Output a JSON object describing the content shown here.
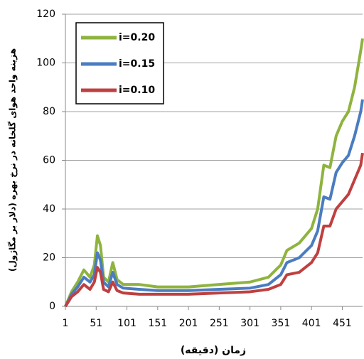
{
  "chart_data": {
    "type": "line",
    "x_label": "زمان (دقیقه)",
    "y_label": "هزینه واحد هوای گلخانه در نرخ بهره (دلار بر مگاژول)",
    "x": [
      1,
      11,
      21,
      31,
      41,
      48,
      53,
      58,
      63,
      71,
      78,
      85,
      95,
      121,
      151,
      201,
      251,
      301,
      331,
      351,
      361,
      381,
      401,
      411,
      421,
      431,
      441,
      451,
      461,
      471,
      481,
      484
    ],
    "series": [
      {
        "name": "i=0.20",
        "color": "#8fb33f",
        "values": [
          0,
          6,
          10,
          15,
          12,
          17,
          29,
          25,
          12,
          10,
          18,
          11,
          9,
          9,
          8,
          8,
          9,
          10,
          12,
          17,
          23,
          26,
          32,
          40,
          58,
          57,
          70,
          76,
          80,
          90,
          105,
          110
        ]
      },
      {
        "name": "i=0.15",
        "color": "#4a7cc0",
        "values": [
          0,
          5,
          8,
          12,
          10,
          13,
          22,
          19,
          10,
          8,
          14,
          9,
          7.5,
          7,
          6.5,
          6.5,
          7,
          7.5,
          9,
          13,
          18,
          20,
          25,
          31,
          45,
          44,
          55,
          59,
          62,
          70,
          80,
          85
        ]
      },
      {
        "name": "i=0.10",
        "color": "#bf4040",
        "values": [
          0,
          4,
          6,
          9,
          7,
          10,
          16,
          14,
          7,
          6,
          10,
          6.5,
          5.5,
          5,
          5,
          5,
          5.5,
          6,
          7,
          9,
          13,
          14,
          18,
          22,
          33,
          33,
          40,
          43,
          46,
          52,
          58,
          63
        ]
      }
    ],
    "xlim": [
      1,
      484
    ],
    "xticks": [
      1,
      51,
      101,
      151,
      201,
      251,
      301,
      351,
      401,
      451
    ],
    "ylim": [
      0,
      120
    ],
    "yticks": [
      0,
      20,
      40,
      60,
      80,
      100,
      120
    ],
    "grid": true,
    "legend": "upper left"
  }
}
